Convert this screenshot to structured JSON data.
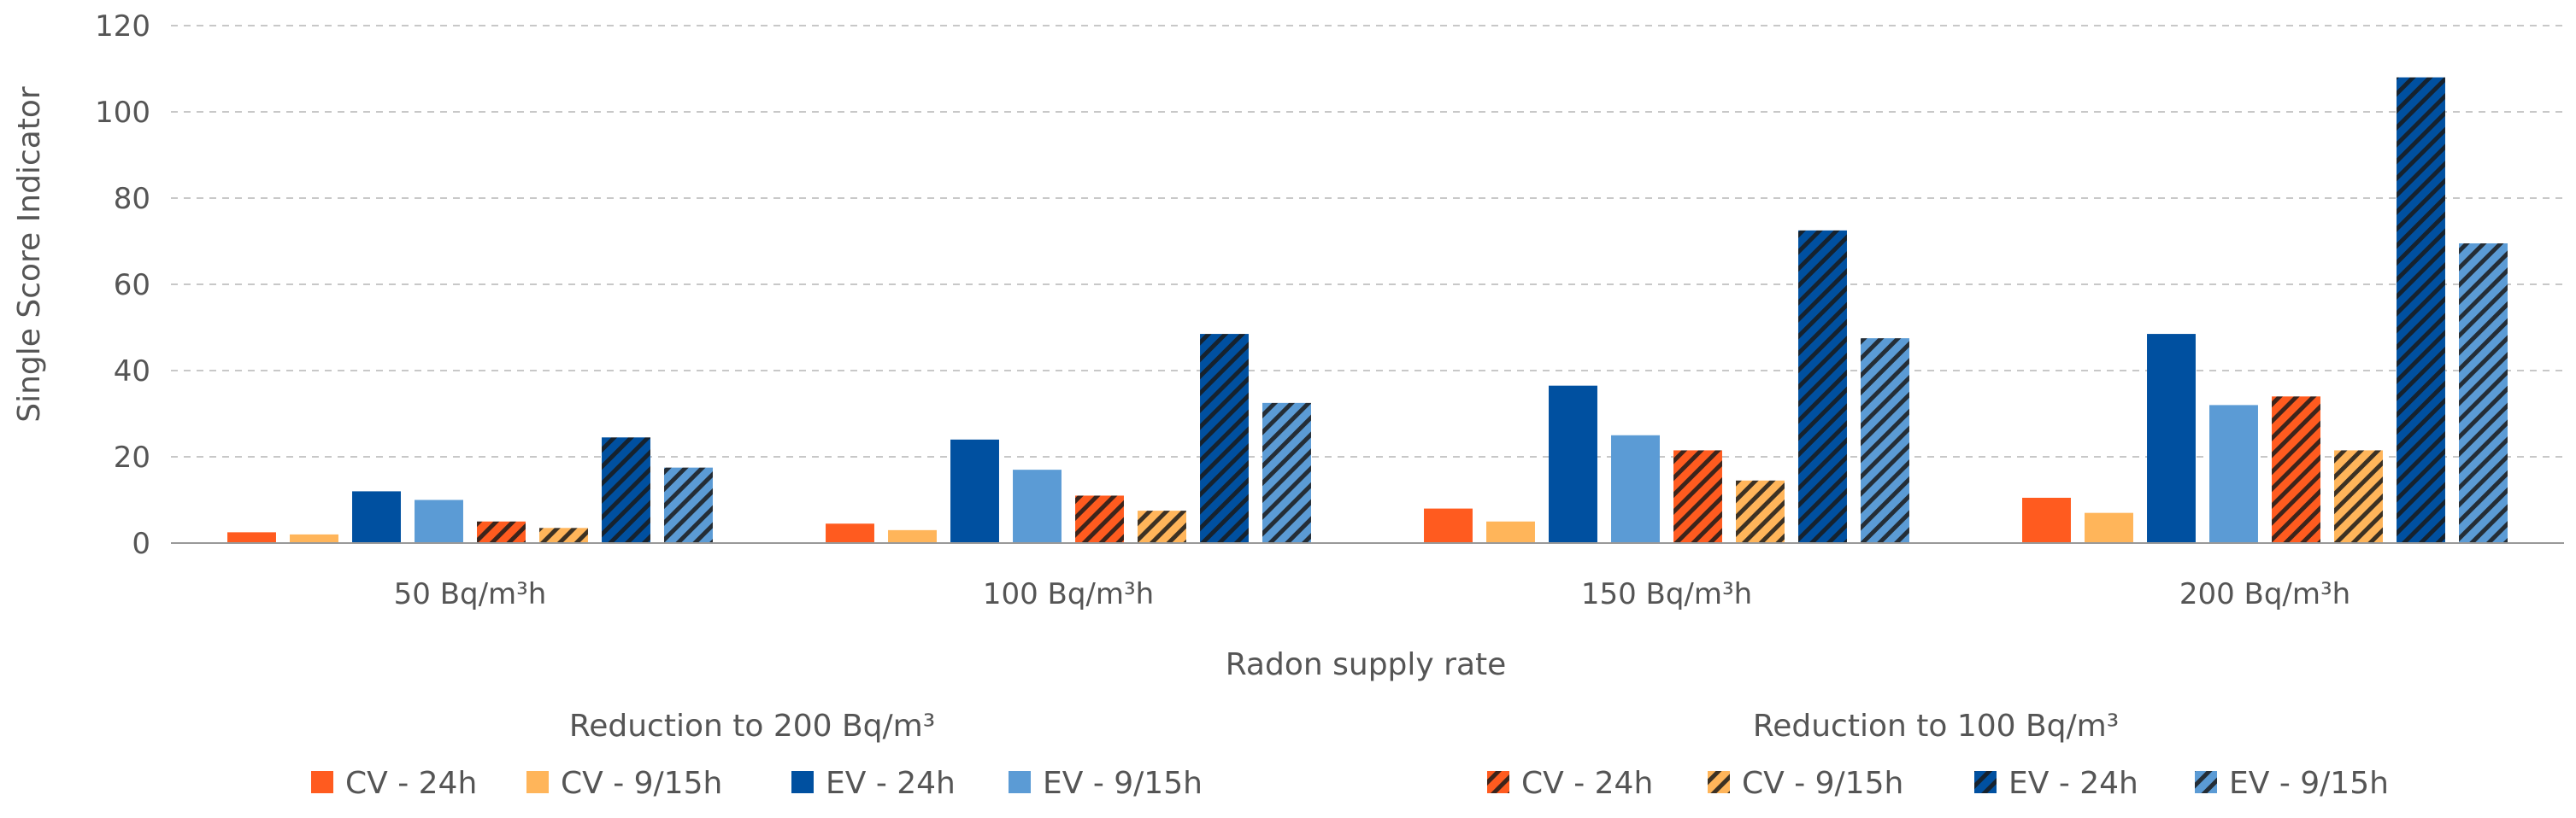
{
  "chart_data": {
    "type": "bar",
    "title": "",
    "xlabel": "Radon supply rate",
    "ylabel": "Single Score Indicator",
    "ylim": [
      0,
      120
    ],
    "yticks": [
      0,
      20,
      40,
      60,
      80,
      100,
      120
    ],
    "grid": "horizontal dashed",
    "categories": [
      "50 Bq/m³h",
      "100 Bq/m³h",
      "150 Bq/m³h",
      "200 Bq/m³h"
    ],
    "legend_groups": [
      {
        "title": "Reduction to 200 Bq/m³",
        "series_indices": [
          0,
          1,
          2,
          3
        ]
      },
      {
        "title": "Reduction to 100 Bq/m³",
        "series_indices": [
          4,
          5,
          6,
          7
        ]
      }
    ],
    "series": [
      {
        "name": "CV - 24h",
        "group": "Reduction to 200 Bq/m³",
        "color": "#FF5B1F",
        "pattern": "solid",
        "values": [
          2.5,
          4.5,
          8,
          10.5
        ]
      },
      {
        "name": "CV - 9/15h",
        "group": "Reduction to 200 Bq/m³",
        "color": "#FFB55A",
        "pattern": "solid",
        "values": [
          2,
          3,
          5,
          7
        ]
      },
      {
        "name": "EV - 24h",
        "group": "Reduction to 200 Bq/m³",
        "color": "#0050A0",
        "pattern": "solid",
        "values": [
          12,
          24,
          36.5,
          48.5
        ]
      },
      {
        "name": "EV - 9/15h",
        "group": "Reduction to 200 Bq/m³",
        "color": "#5B9BD5",
        "pattern": "solid",
        "values": [
          10,
          17,
          25,
          32
        ]
      },
      {
        "name": "CV - 24h",
        "group": "Reduction to 100 Bq/m³",
        "color": "#FF5B1F",
        "pattern": "hatched",
        "values": [
          5,
          11,
          21.5,
          34
        ]
      },
      {
        "name": "CV - 9/15h",
        "group": "Reduction to 100 Bq/m³",
        "color": "#FFB55A",
        "pattern": "hatched",
        "values": [
          3.5,
          7.5,
          14.5,
          21.5
        ]
      },
      {
        "name": "EV - 24h",
        "group": "Reduction to 100 Bq/m³",
        "color": "#0050A0",
        "pattern": "hatched",
        "values": [
          24.5,
          48.5,
          72.5,
          108
        ]
      },
      {
        "name": "EV - 9/15h",
        "group": "Reduction to 100 Bq/m³",
        "color": "#5B9BD5",
        "pattern": "hatched",
        "values": [
          17.5,
          32.5,
          47.5,
          69.5
        ]
      }
    ]
  }
}
